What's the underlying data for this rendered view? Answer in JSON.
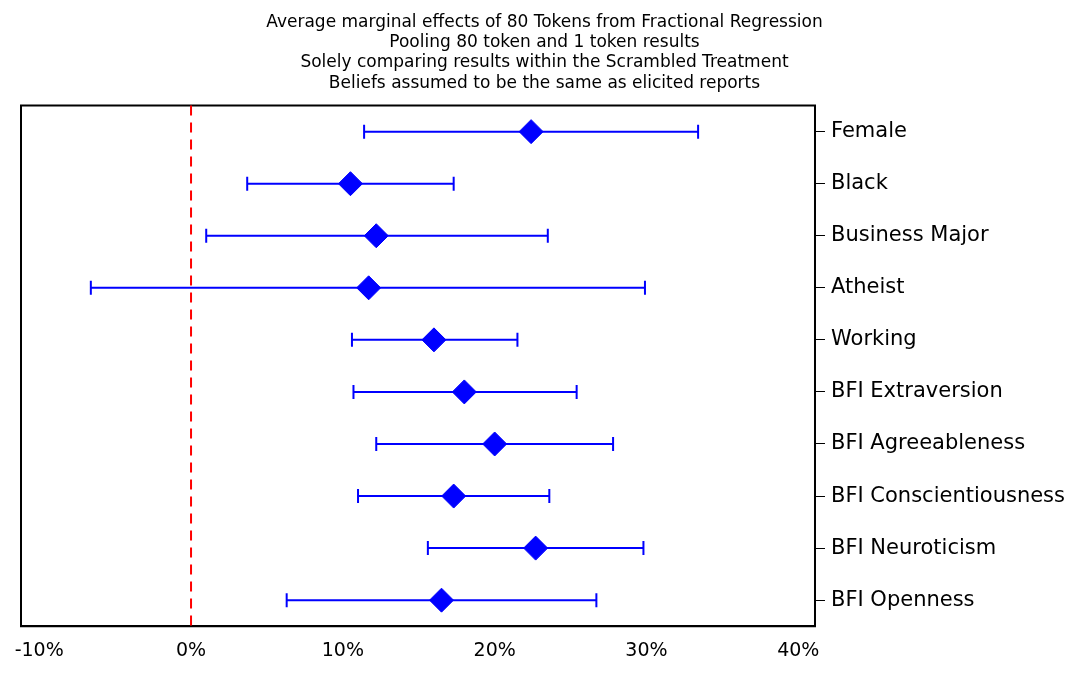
{
  "chart_data": {
    "type": "scatter",
    "orientation": "horizontal",
    "title": "Average marginal effects of 80 Tokens from Fractional Regression",
    "subtitle": "Pooling 80 token and 1 token results\nSolely comparing results within the Scrambled Treatment\nBeliefs assumed to be the same as elicited reports",
    "categories": [
      "Female",
      "Black",
      "Business Major",
      "Atheist",
      "Working",
      "BFI Extraversion",
      "BFI Agreeableness",
      "BFI Conscientiousness",
      "BFI Neuroticism",
      "BFI Openness"
    ],
    "values": [
      22.4,
      10.5,
      12.2,
      11.7,
      16.0,
      18.0,
      20.0,
      17.3,
      22.7,
      16.5
    ],
    "errors": [
      [
        11.4,
        33.4
      ],
      [
        3.7,
        17.3
      ],
      [
        1.0,
        23.5
      ],
      [
        -6.6,
        29.9
      ],
      [
        10.6,
        21.5
      ],
      [
        10.7,
        25.4
      ],
      [
        12.2,
        27.8
      ],
      [
        11.0,
        23.6
      ],
      [
        15.6,
        29.8
      ],
      [
        6.3,
        26.7
      ]
    ],
    "color": "#0000ff",
    "marker": "diamond",
    "xlim": [
      -11.2,
      41.1
    ],
    "xticks": [
      {
        "value": -10,
        "label": "-10%"
      },
      {
        "value": 0,
        "label": "0%"
      },
      {
        "value": 10,
        "label": "10%"
      },
      {
        "value": 20,
        "label": "20%"
      },
      {
        "value": 30,
        "label": "30%"
      },
      {
        "value": 40,
        "label": "40%"
      }
    ],
    "ref_lines": [
      {
        "axis": "x",
        "value": 0,
        "color": "#ff0000",
        "line_style": "dashed"
      }
    ],
    "grid": false,
    "legend": false
  }
}
